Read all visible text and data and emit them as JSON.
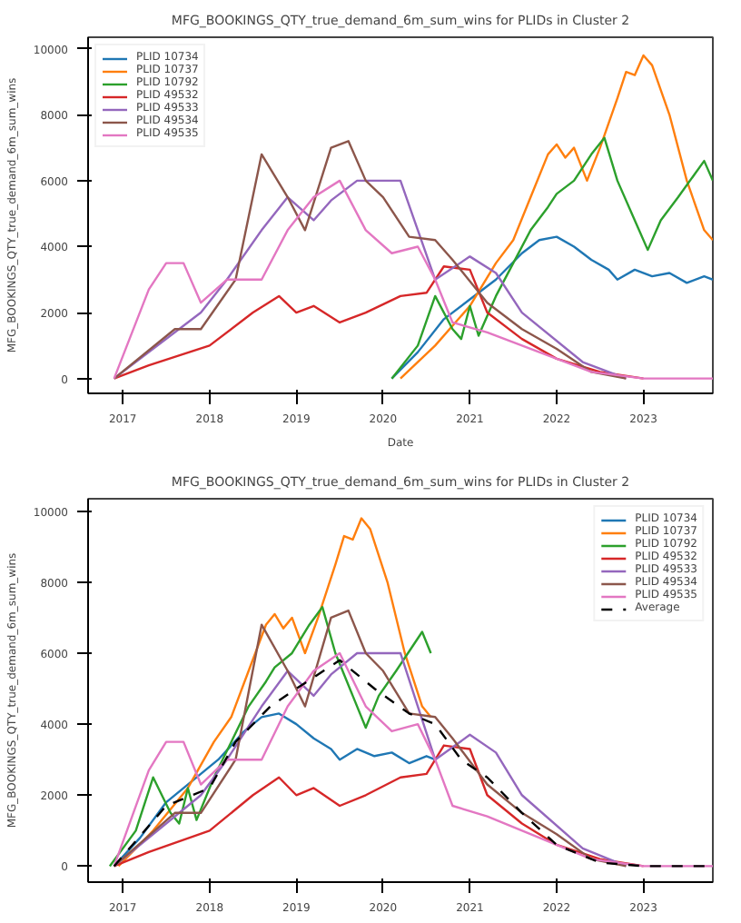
{
  "chart_data": [
    {
      "type": "line",
      "title": "MFG_BOOKINGS_QTY_true_demand_6m_sum_wins for PLIDs in Cluster 2",
      "xlabel": "Date",
      "ylabel": "MFG_BOOKINGS_QTY_true_demand_6m_sum_wins",
      "xlim": [
        2016.6,
        2023.8
      ],
      "ylim": [
        -450,
        10350
      ],
      "xticks": [
        2017,
        2018,
        2019,
        2020,
        2021,
        2022,
        2023
      ],
      "yticks": [
        0,
        2000,
        4000,
        6000,
        8000,
        10000
      ],
      "grid": false,
      "legend": "top left",
      "marker": "none",
      "line_style": "solid",
      "series": [
        {
          "name": "PLID 10734",
          "color": "#1f77b4",
          "x": [
            2020.1,
            2020.4,
            2020.7,
            2021.0,
            2021.3,
            2021.6,
            2021.8,
            2022.0,
            2022.2,
            2022.4,
            2022.6,
            2022.7,
            2022.9,
            2023.1,
            2023.3,
            2023.5,
            2023.7,
            2023.8
          ],
          "values": [
            0,
            800,
            1800,
            2400,
            3000,
            3800,
            4200,
            4300,
            4000,
            3600,
            3300,
            3000,
            3300,
            3100,
            3200,
            2900,
            3100,
            3000
          ]
        },
        {
          "name": "PLID 10737",
          "color": "#ff7f0e",
          "x": [
            2020.2,
            2020.6,
            2021.0,
            2021.3,
            2021.5,
            2021.7,
            2021.9,
            2022.0,
            2022.1,
            2022.2,
            2022.35,
            2022.5,
            2022.7,
            2022.8,
            2022.9,
            2023.0,
            2023.1,
            2023.3,
            2023.5,
            2023.7,
            2023.8
          ],
          "values": [
            0,
            1000,
            2200,
            3500,
            4200,
            5500,
            6800,
            7100,
            6700,
            7000,
            6000,
            7000,
            8500,
            9300,
            9200,
            9800,
            9500,
            8000,
            6000,
            4500,
            4200
          ]
        },
        {
          "name": "PLID 10792",
          "color": "#2ca02c",
          "x": [
            2020.1,
            2020.4,
            2020.6,
            2020.8,
            2020.9,
            2021.0,
            2021.1,
            2021.3,
            2021.5,
            2021.7,
            2021.9,
            2022.0,
            2022.2,
            2022.4,
            2022.55,
            2022.7,
            2022.9,
            2023.05,
            2023.2,
            2023.4,
            2023.7,
            2023.8
          ],
          "values": [
            0,
            1000,
            2500,
            1500,
            1200,
            2200,
            1300,
            2500,
            3500,
            4500,
            5200,
            5600,
            6000,
            6800,
            7300,
            6000,
            4800,
            3900,
            4800,
            5500,
            6600,
            6000
          ]
        },
        {
          "name": "PLID 49532",
          "color": "#d62728",
          "x": [
            2016.9,
            2017.3,
            2018.0,
            2018.5,
            2018.8,
            2019.0,
            2019.2,
            2019.5,
            2019.8,
            2020.2,
            2020.5,
            2020.7,
            2021.0,
            2021.2,
            2021.6,
            2022.0,
            2022.5,
            2023.0
          ],
          "values": [
            0,
            400,
            1000,
            2000,
            2500,
            2000,
            2200,
            1700,
            2000,
            2500,
            2600,
            3400,
            3300,
            2000,
            1200,
            600,
            200,
            0
          ]
        },
        {
          "name": "PLID 49533",
          "color": "#9467bd",
          "x": [
            2016.9,
            2017.9,
            2018.2,
            2018.6,
            2018.9,
            2019.2,
            2019.4,
            2019.7,
            2019.9,
            2020.2,
            2020.4,
            2020.6,
            2021.0,
            2021.3,
            2021.6,
            2022.3,
            2022.8
          ],
          "values": [
            0,
            2000,
            3000,
            4500,
            5500,
            4800,
            5400,
            6000,
            6000,
            6000,
            4500,
            3000,
            3700,
            3200,
            2000,
            500,
            0
          ]
        },
        {
          "name": "PLID 49534",
          "color": "#8c564b",
          "x": [
            2016.9,
            2017.6,
            2017.9,
            2018.3,
            2018.6,
            2018.9,
            2019.1,
            2019.4,
            2019.6,
            2019.8,
            2020.0,
            2020.3,
            2020.6,
            2020.8,
            2021.2,
            2021.6,
            2022.0,
            2022.4,
            2022.8
          ],
          "values": [
            0,
            1500,
            1500,
            3000,
            6800,
            5500,
            4500,
            7000,
            7200,
            6000,
            5500,
            4300,
            4200,
            3600,
            2300,
            1500,
            900,
            200,
            0
          ]
        },
        {
          "name": "PLID 49535",
          "color": "#e377c2",
          "x": [
            2016.9,
            2017.3,
            2017.5,
            2017.7,
            2017.9,
            2018.2,
            2018.6,
            2018.9,
            2019.2,
            2019.5,
            2019.8,
            2020.1,
            2020.4,
            2020.6,
            2020.8,
            2021.2,
            2021.8,
            2022.4,
            2023.0,
            2023.8
          ],
          "values": [
            0,
            2700,
            3500,
            3500,
            2300,
            3000,
            3000,
            4500,
            5500,
            6000,
            4500,
            3800,
            4000,
            3000,
            1700,
            1400,
            800,
            200,
            0,
            0
          ]
        }
      ]
    },
    {
      "type": "line",
      "title": "MFG_BOOKINGS_QTY_true_demand_6m_sum_wins for PLIDs in Cluster 2",
      "ylabel": "MFG_BOOKINGS_QTY_true_demand_6m_sum_wins",
      "xlim": [
        2016.6,
        2023.8
      ],
      "ylim": [
        -450,
        10350
      ],
      "xticks": [
        2017,
        2018,
        2019,
        2020,
        2021,
        2022,
        2023
      ],
      "yticks": [
        0,
        2000,
        4000,
        6000,
        8000,
        10000
      ],
      "grid": false,
      "legend": "top right",
      "marker": "none",
      "line_style": "solid",
      "series": [
        {
          "name": "PLID 10734",
          "color": "#1f77b4",
          "x": [
            2016.9,
            2017.2,
            2017.5,
            2017.8,
            2018.1,
            2018.4,
            2018.6,
            2018.8,
            2019.0,
            2019.2,
            2019.4,
            2019.5,
            2019.7,
            2019.9,
            2020.1,
            2020.3,
            2020.5,
            2020.6
          ],
          "values": [
            0,
            800,
            1800,
            2400,
            3000,
            3800,
            4200,
            4300,
            4000,
            3600,
            3300,
            3000,
            3300,
            3100,
            3200,
            2900,
            3100,
            3000
          ]
        },
        {
          "name": "PLID 10737",
          "color": "#ff7f0e",
          "x": [
            2016.95,
            2017.35,
            2017.75,
            2018.05,
            2018.25,
            2018.45,
            2018.65,
            2018.75,
            2018.85,
            2018.95,
            2019.1,
            2019.25,
            2019.45,
            2019.55,
            2019.65,
            2019.75,
            2019.85,
            2020.05,
            2020.25,
            2020.45,
            2020.55
          ],
          "values": [
            0,
            1000,
            2200,
            3500,
            4200,
            5500,
            6800,
            7100,
            6700,
            7000,
            6000,
            7000,
            8500,
            9300,
            9200,
            9800,
            9500,
            8000,
            6000,
            4500,
            4200
          ]
        },
        {
          "name": "PLID 10792",
          "color": "#2ca02c",
          "x": [
            2016.85,
            2017.15,
            2017.35,
            2017.55,
            2017.65,
            2017.75,
            2017.85,
            2018.05,
            2018.25,
            2018.45,
            2018.65,
            2018.75,
            2018.95,
            2019.15,
            2019.3,
            2019.45,
            2019.65,
            2019.8,
            2019.95,
            2020.15,
            2020.45,
            2020.55
          ],
          "values": [
            0,
            1000,
            2500,
            1500,
            1200,
            2200,
            1300,
            2500,
            3500,
            4500,
            5200,
            5600,
            6000,
            6800,
            7300,
            6000,
            4800,
            3900,
            4800,
            5500,
            6600,
            6000
          ]
        },
        {
          "name": "PLID 49532",
          "color": "#d62728",
          "x": [
            2016.9,
            2017.3,
            2018.0,
            2018.5,
            2018.8,
            2019.0,
            2019.2,
            2019.5,
            2019.8,
            2020.2,
            2020.5,
            2020.7,
            2021.0,
            2021.2,
            2021.6,
            2022.0,
            2022.5,
            2023.0
          ],
          "values": [
            0,
            400,
            1000,
            2000,
            2500,
            2000,
            2200,
            1700,
            2000,
            2500,
            2600,
            3400,
            3300,
            2000,
            1200,
            600,
            200,
            0
          ]
        },
        {
          "name": "PLID 49533",
          "color": "#9467bd",
          "x": [
            2016.9,
            2017.9,
            2018.2,
            2018.6,
            2018.9,
            2019.2,
            2019.4,
            2019.7,
            2019.9,
            2020.2,
            2020.4,
            2020.6,
            2021.0,
            2021.3,
            2021.6,
            2022.3,
            2022.8
          ],
          "values": [
            0,
            2000,
            3000,
            4500,
            5500,
            4800,
            5400,
            6000,
            6000,
            6000,
            4500,
            3000,
            3700,
            3200,
            2000,
            500,
            0
          ]
        },
        {
          "name": "PLID 49534",
          "color": "#8c564b",
          "x": [
            2016.9,
            2017.6,
            2017.9,
            2018.3,
            2018.6,
            2018.9,
            2019.1,
            2019.4,
            2019.6,
            2019.8,
            2020.0,
            2020.3,
            2020.6,
            2020.8,
            2021.2,
            2021.6,
            2022.0,
            2022.4,
            2022.8
          ],
          "values": [
            0,
            1500,
            1500,
            3000,
            6800,
            5500,
            4500,
            7000,
            7200,
            6000,
            5500,
            4300,
            4200,
            3600,
            2300,
            1500,
            900,
            200,
            0
          ]
        },
        {
          "name": "PLID 49535",
          "color": "#e377c2",
          "x": [
            2016.9,
            2017.3,
            2017.5,
            2017.7,
            2017.9,
            2018.2,
            2018.6,
            2018.9,
            2019.2,
            2019.5,
            2019.8,
            2020.1,
            2020.4,
            2020.6,
            2020.8,
            2021.2,
            2021.8,
            2022.4,
            2023.0,
            2023.8
          ],
          "values": [
            0,
            2700,
            3500,
            3500,
            2300,
            3000,
            3000,
            4500,
            5500,
            6000,
            4500,
            3800,
            4000,
            3000,
            1700,
            1400,
            800,
            200,
            0,
            0
          ]
        },
        {
          "name": "Average",
          "color": "#000000",
          "line_style": "dashed",
          "x": [
            2016.9,
            2017.5,
            2018.0,
            2018.3,
            2018.7,
            2019.0,
            2019.5,
            2019.9,
            2020.3,
            2020.6,
            2020.9,
            2021.2,
            2021.6,
            2022.0,
            2022.5,
            2023.0,
            2023.8
          ],
          "values": [
            0,
            1700,
            2200,
            3500,
            4500,
            5000,
            5800,
            5000,
            4300,
            4000,
            3000,
            2500,
            1500,
            600,
            100,
            0,
            0
          ]
        }
      ]
    }
  ]
}
